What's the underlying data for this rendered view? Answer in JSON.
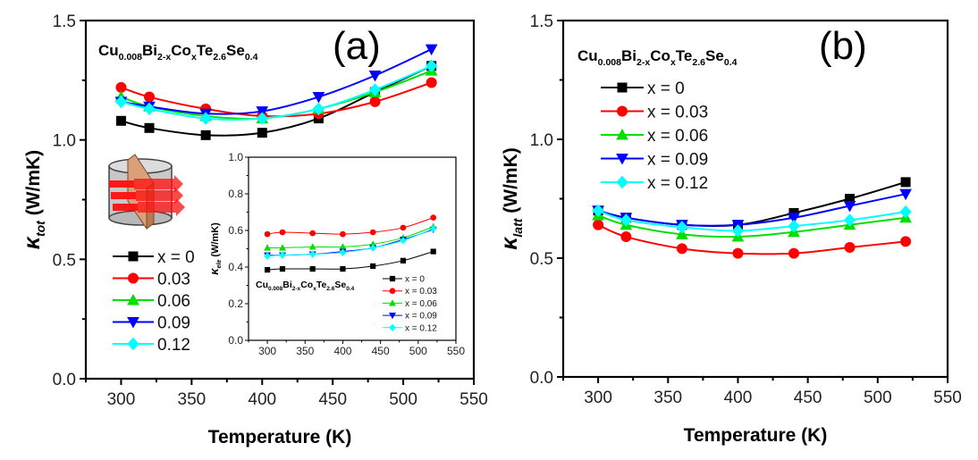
{
  "formula": [
    {
      "t": "Cu",
      "s": "0.008"
    },
    {
      "t": "Bi",
      "s": "2-x"
    },
    {
      "t": "Co",
      "s": "x"
    },
    {
      "t": "Te",
      "s": "2.6"
    },
    {
      "t": "Se",
      "s": "0.4"
    }
  ],
  "colors": {
    "x=0": "#000000",
    "x=0.03": "#ff0000",
    "x=0.06": "#00e000",
    "x=0.09": "#0000ff",
    "x=0.12": "#00ffff"
  },
  "chart_data": [
    {
      "id": "a",
      "type": "line",
      "panel_label": "(a)",
      "xlabel": "Temperature (K)",
      "ylabel": {
        "symbol": "κ",
        "sub": "tot",
        "unit": " (W/mK)"
      },
      "xlim": [
        275,
        550
      ],
      "ylim": [
        0,
        1.5
      ],
      "xticks": [
        300,
        350,
        400,
        450,
        500,
        550
      ],
      "yticks": [
        "0.0",
        "0.5",
        "1.0",
        "1.5"
      ],
      "grid": false,
      "legend_position": "left-middle",
      "x": [
        300,
        320,
        360,
        400,
        440,
        480,
        520
      ],
      "series": [
        {
          "name": "x = 0",
          "marker": "square",
          "color": "#000000",
          "values": [
            1.08,
            1.05,
            1.02,
            1.03,
            1.09,
            1.2,
            1.31
          ]
        },
        {
          "name": "0.03",
          "marker": "circle",
          "color": "#ff0000",
          "values": [
            1.22,
            1.18,
            1.13,
            1.1,
            1.11,
            1.16,
            1.24
          ]
        },
        {
          "name": "0.06",
          "marker": "triangle-up",
          "color": "#00e000",
          "values": [
            1.18,
            1.14,
            1.1,
            1.09,
            1.13,
            1.2,
            1.29
          ]
        },
        {
          "name": "0.09",
          "marker": "triangle-down",
          "color": "#0000ff",
          "values": [
            1.16,
            1.14,
            1.11,
            1.12,
            1.18,
            1.27,
            1.38
          ]
        },
        {
          "name": "0.12",
          "marker": "diamond",
          "color": "#00ffff",
          "values": [
            1.16,
            1.13,
            1.09,
            1.09,
            1.13,
            1.21,
            1.31
          ]
        }
      ]
    },
    {
      "id": "inset",
      "type": "line",
      "xlabel": "",
      "ylabel": {
        "symbol": "κ",
        "sub": "ele",
        "unit": " (W/mK)"
      },
      "xlim": [
        275,
        550
      ],
      "ylim": [
        0,
        1.0
      ],
      "xticks": [
        300,
        350,
        400,
        450,
        500,
        550
      ],
      "yticks": [
        "0.0",
        "0.2",
        "0.4",
        "0.6",
        "0.8",
        "1.0"
      ],
      "grid": false,
      "legend_position": "bottom-right",
      "x": [
        300,
        320,
        360,
        400,
        440,
        480,
        520
      ],
      "series": [
        {
          "name": "x = 0",
          "marker": "square",
          "color": "#000000",
          "values": [
            0.385,
            0.39,
            0.39,
            0.39,
            0.405,
            0.435,
            0.485
          ]
        },
        {
          "name": "x = 0.03",
          "marker": "circle",
          "color": "#ff0000",
          "values": [
            0.58,
            0.59,
            0.585,
            0.58,
            0.59,
            0.615,
            0.67
          ]
        },
        {
          "name": "x = 0.06",
          "marker": "triangle-up",
          "color": "#00e000",
          "values": [
            0.505,
            0.505,
            0.51,
            0.51,
            0.525,
            0.56,
            0.62
          ]
        },
        {
          "name": "x = 0.09",
          "marker": "triangle-down",
          "color": "#0000ff",
          "values": [
            0.465,
            0.465,
            0.47,
            0.485,
            0.505,
            0.55,
            0.605
          ]
        },
        {
          "name": "x = 0.12",
          "marker": "diamond",
          "color": "#00ffff",
          "values": [
            0.46,
            0.465,
            0.47,
            0.48,
            0.505,
            0.545,
            0.61
          ]
        }
      ]
    },
    {
      "id": "b",
      "type": "line",
      "panel_label": "(b)",
      "xlabel": "Temperature (K)",
      "ylabel": {
        "symbol": "κ",
        "sub": "latt",
        "unit": " (W/mK)"
      },
      "xlim": [
        275,
        550
      ],
      "ylim": [
        0,
        1.5
      ],
      "xticks": [
        300,
        350,
        400,
        450,
        500,
        550
      ],
      "yticks": [
        "0.0",
        "0.5",
        "1.0",
        "1.5"
      ],
      "grid": false,
      "legend_position": "top-left",
      "x": [
        300,
        320,
        360,
        400,
        440,
        480,
        520
      ],
      "series": [
        {
          "name": "x = 0",
          "marker": "square",
          "color": "#000000",
          "values": [
            0.7,
            0.67,
            0.64,
            0.64,
            0.69,
            0.75,
            0.82
          ]
        },
        {
          "name": "x = 0.03",
          "marker": "circle",
          "color": "#ff0000",
          "values": [
            0.64,
            0.59,
            0.54,
            0.52,
            0.52,
            0.545,
            0.57
          ]
        },
        {
          "name": "x = 0.06",
          "marker": "triangle-up",
          "color": "#00e000",
          "values": [
            0.68,
            0.64,
            0.6,
            0.59,
            0.61,
            0.64,
            0.67
          ]
        },
        {
          "name": "x = 0.09",
          "marker": "triangle-down",
          "color": "#0000ff",
          "values": [
            0.7,
            0.67,
            0.64,
            0.64,
            0.67,
            0.72,
            0.77
          ]
        },
        {
          "name": "x = 0.12",
          "marker": "diamond",
          "color": "#00ffff",
          "values": [
            0.7,
            0.66,
            0.63,
            0.615,
            0.635,
            0.66,
            0.695
          ]
        }
      ]
    }
  ]
}
